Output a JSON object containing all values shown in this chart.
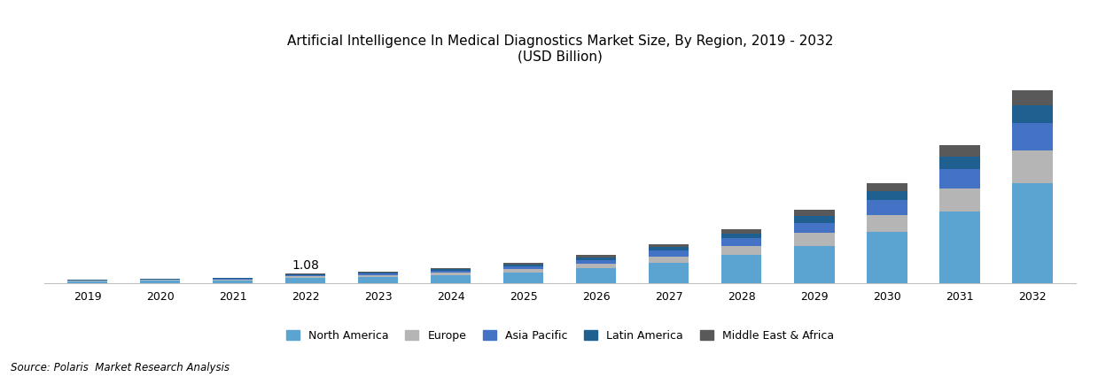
{
  "title_line1": "Artificial Intelligence In Medical Diagnostics Market Size, By Region, 2019 - 2032",
  "title_line2": "(USD Billion)",
  "source_text": "Source: Polaris  Market Research Analysis",
  "years": [
    2019,
    2020,
    2021,
    2022,
    2023,
    2024,
    2025,
    2026,
    2027,
    2028,
    2029,
    2030,
    2031,
    2032
  ],
  "annotation_year": 2022,
  "annotation_text": "1.08",
  "regions": [
    "North America",
    "Europe",
    "Asia Pacific",
    "Latin America",
    "Middle East & Africa"
  ],
  "colors": [
    "#5ba3d0",
    "#b5b5b5",
    "#4472c4",
    "#1f6091",
    "#595959"
  ],
  "data": {
    "North America": [
      0.18,
      0.23,
      0.3,
      0.55,
      0.68,
      0.88,
      1.2,
      1.65,
      2.3,
      3.2,
      4.3,
      5.9,
      8.2,
      11.5
    ],
    "Europe": [
      0.06,
      0.08,
      0.1,
      0.17,
      0.22,
      0.29,
      0.4,
      0.55,
      0.77,
      1.07,
      1.44,
      1.97,
      2.7,
      3.8
    ],
    "Asia Pacific": [
      0.05,
      0.06,
      0.08,
      0.14,
      0.18,
      0.24,
      0.33,
      0.46,
      0.64,
      0.9,
      1.21,
      1.66,
      2.28,
      3.2
    ],
    "Latin America": [
      0.03,
      0.04,
      0.05,
      0.09,
      0.12,
      0.15,
      0.21,
      0.29,
      0.4,
      0.56,
      0.76,
      1.04,
      1.43,
      2.0
    ],
    "Middle East & Africa": [
      0.02,
      0.03,
      0.04,
      0.13,
      0.1,
      0.14,
      0.19,
      0.26,
      0.37,
      0.51,
      0.69,
      0.95,
      1.3,
      1.82
    ]
  },
  "ylim": [
    0,
    24
  ],
  "bar_width": 0.55,
  "background_color": "#ffffff",
  "border_color": "#c0c0c0",
  "title_fontsize": 11,
  "source_fontsize": 8.5,
  "legend_fontsize": 9,
  "annotation_fontsize": 10
}
